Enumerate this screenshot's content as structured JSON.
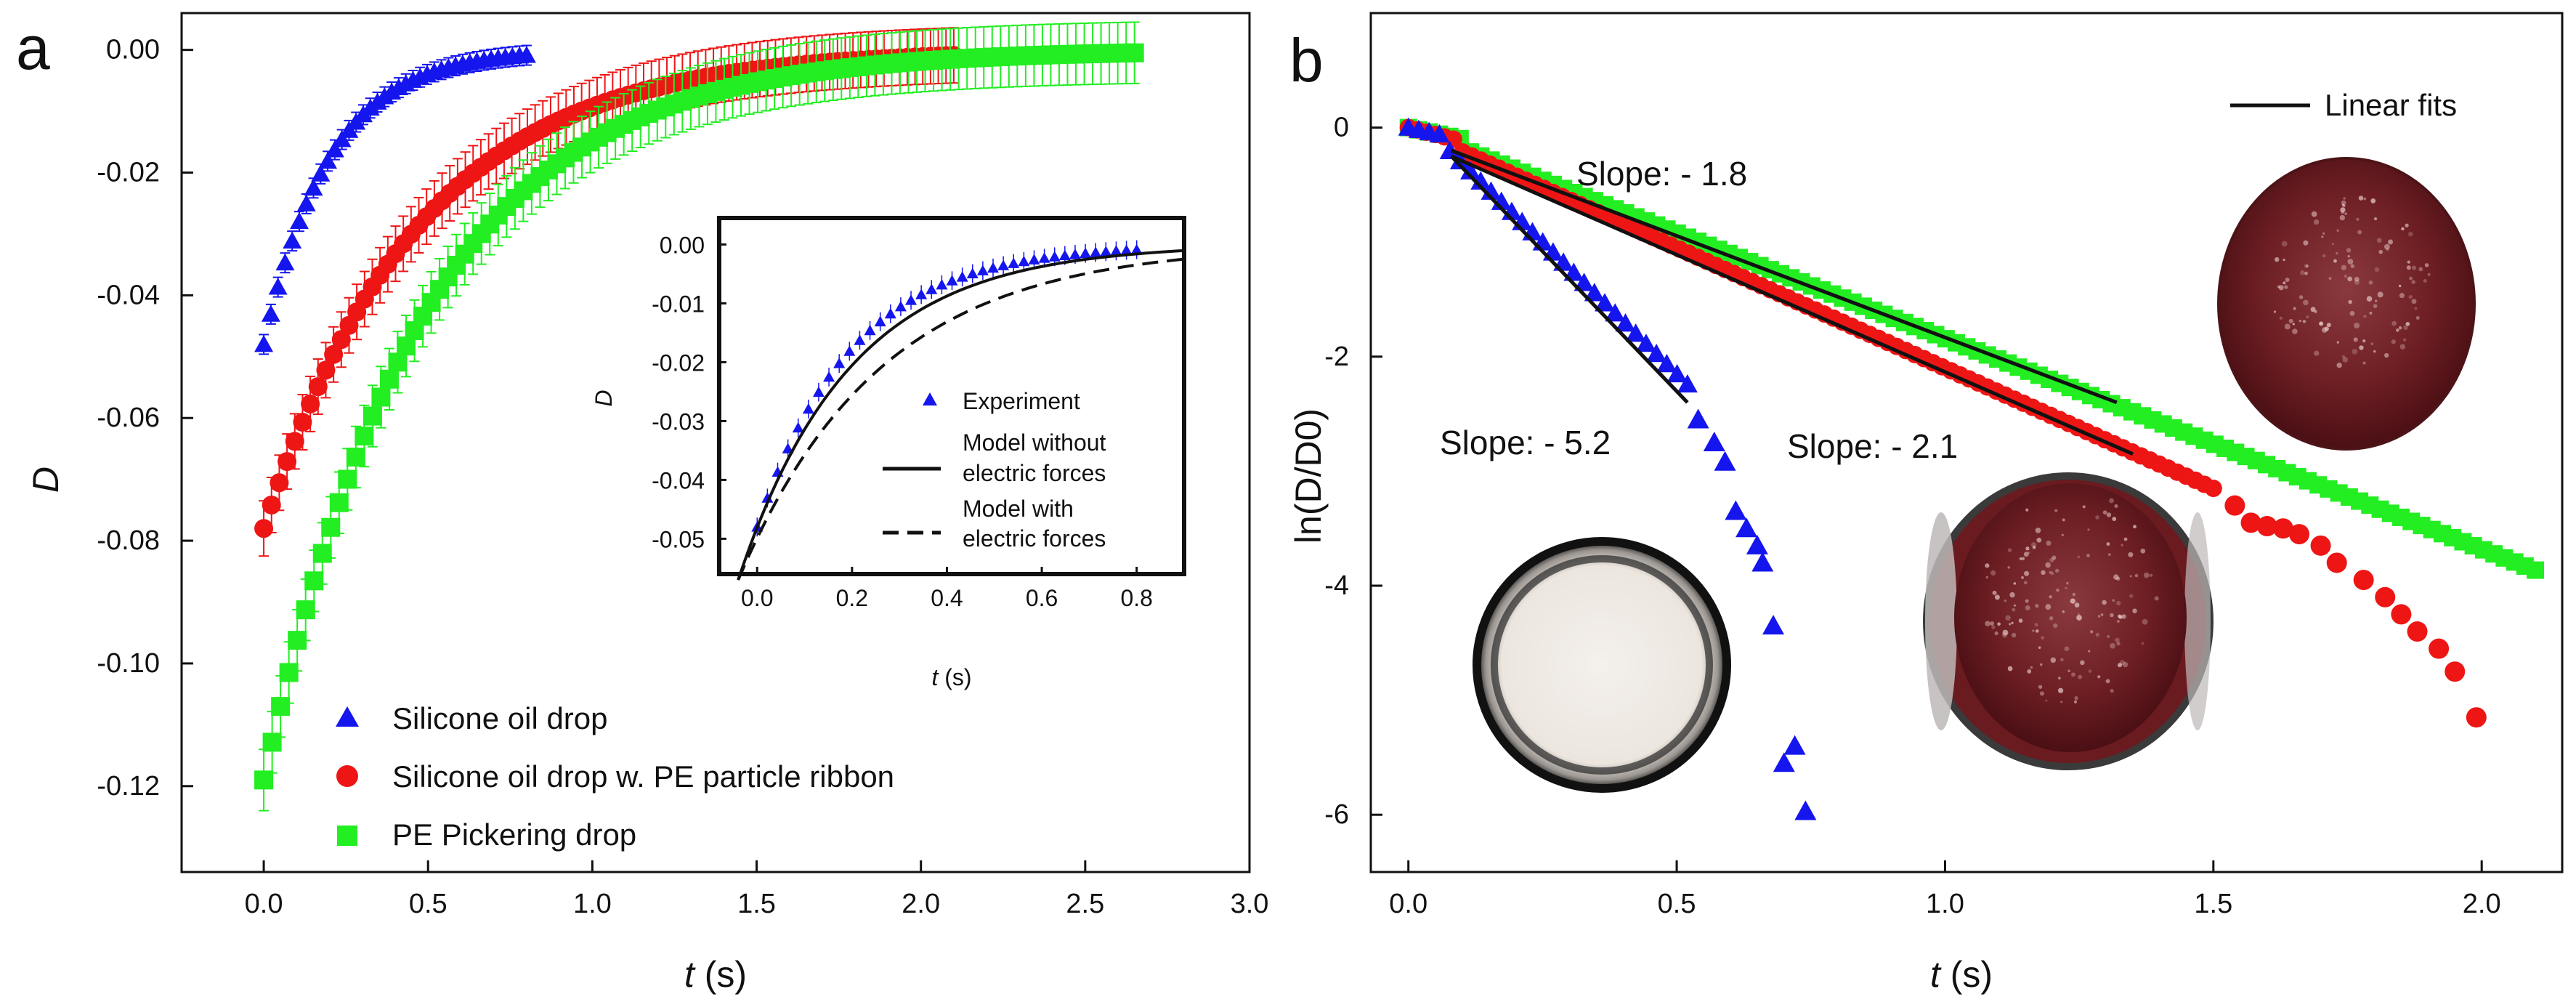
{
  "colors": {
    "blue": "#1515ee",
    "red": "#ee1515",
    "green": "#22ee22",
    "black": "#111111"
  },
  "chart_data": [
    {
      "panel": "a",
      "type": "scatter",
      "xlabel_italic": "t",
      "xlabel_unit": "(s)",
      "ylabel": "D",
      "xlim": [
        -0.25,
        3.0
      ],
      "ylim": [
        -0.134,
        0.006
      ],
      "xticks": [
        "0.0",
        "0.5",
        "1.0",
        "1.5",
        "2.0",
        "2.5",
        "3.0"
      ],
      "yticks": [
        "0.00",
        "-0.02",
        "-0.04",
        "-0.06",
        "-0.08",
        "-0.10",
        "-0.12"
      ],
      "legend": [
        "Silicone oil drop",
        "Silicone oil drop w. PE particle ribbon",
        "PE Pickering drop"
      ],
      "legend_position": "bottom-left",
      "series": [
        {
          "name": "Silicone oil drop",
          "marker": "triangle",
          "color": "blue",
          "D0": -0.048,
          "tau": 0.2,
          "t_end": 0.8,
          "n": 38,
          "err": 0.0016
        },
        {
          "name": "Silicone oil drop w. PE particle ribbon",
          "marker": "circle",
          "color": "red",
          "D0": -0.078,
          "tau": 0.47,
          "t_end": 2.1,
          "n": 90,
          "err": 0.0045
        },
        {
          "name": "PE Pickering drop",
          "marker": "square",
          "color": "green",
          "D0": -0.119,
          "tau": 0.48,
          "t_end": 2.65,
          "n": 105,
          "err": 0.005
        }
      ],
      "inset": {
        "xlim": [
          -0.08,
          0.9
        ],
        "ylim": [
          -0.056,
          0.0045
        ],
        "xticks": [
          "0.0",
          "0.2",
          "0.4",
          "0.6",
          "0.8"
        ],
        "yticks": [
          "0.00",
          "-0.01",
          "-0.02",
          "-0.03",
          "-0.04",
          "-0.05"
        ],
        "xlabel_italic": "t",
        "xlabel_unit": "(s)",
        "ylabel": "D",
        "legend": {
          "experiment": "Experiment",
          "model_without_1": "Model without",
          "model_without_2": "electric forces",
          "model_with_1": "Model with",
          "model_with_2": "electric forces"
        }
      }
    },
    {
      "panel": "b",
      "type": "scatter",
      "xlabel_italic": "t",
      "xlabel_unit": "(s)",
      "ylabel": "ln(D/D0)",
      "xlim": [
        -0.07,
        2.15
      ],
      "ylim": [
        -6.5,
        1.0
      ],
      "xticks": [
        "0.0",
        "0.5",
        "1.0",
        "1.5",
        "2.0"
      ],
      "yticks": [
        "0",
        "-2",
        "-4",
        "-6"
      ],
      "legend": [
        "Linear fits"
      ],
      "legend_position": "top-right",
      "annotations": [
        "Slope: - 1.8",
        "Slope: - 5.2",
        "Slope: - 2.1"
      ],
      "series": [
        {
          "name": "Silicone oil drop",
          "color": "blue",
          "marker": "triangle",
          "slope": -5.2,
          "t_end": 0.75
        },
        {
          "name": "Silicone oil drop w. PE particle ribbon",
          "color": "red",
          "marker": "circle",
          "slope": -2.1,
          "t_end": 2.0
        },
        {
          "name": "PE Pickering drop",
          "color": "green",
          "marker": "square",
          "slope": -1.8,
          "t_end": 2.1
        }
      ],
      "fits": [
        {
          "x": [
            0.08,
            1.32
          ],
          "y": [
            -0.2,
            -2.4
          ]
        },
        {
          "x": [
            0.08,
            1.35
          ],
          "y": [
            -0.25,
            -2.85
          ]
        },
        {
          "x": [
            0.08,
            0.52
          ],
          "y": [
            -0.25,
            -2.4
          ]
        }
      ]
    }
  ]
}
